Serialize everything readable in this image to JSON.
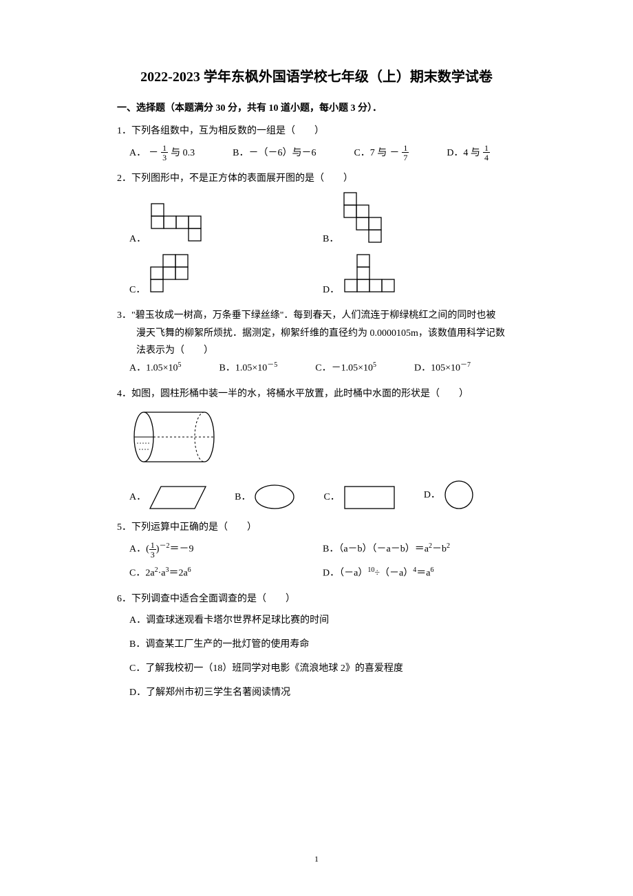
{
  "title": "2022-2023 学年东枫外国语学校七年级（上）期末数学试卷",
  "section1": {
    "header": "一、选择题（本题满分 30 分，共有 10 道小题，每小题 3 分）．",
    "q1": {
      "text": "1．下列各组数中，互为相反数的一组是（　　）",
      "A_pre": "A．",
      "A_mid": "与 0.3",
      "B": "B．－（－6）与－6",
      "C_pre": "C．7 与",
      "D_pre": "D．4 与"
    },
    "q2": {
      "text": "2．下列图形中，不是正方体的表面展开图的是（　　）",
      "A": "A．",
      "B": "B．",
      "C": "C．",
      "D": "D．"
    },
    "q3": {
      "line1": "3．\"碧玉妆成一树高，万条垂下绿丝绦\"．每到春天，人们流连于柳绿桃红之间的同时也被",
      "line2": "漫天飞舞的柳絮所烦扰．据测定，柳絮纤维的直径约为 0.0000105m，该数值用科学记数",
      "line3": "法表示为（　　）",
      "A": "A．1.05×10",
      "A_sup": "5",
      "B": "B．1.05×10",
      "B_sup": "－5",
      "C": "C．－1.05×10",
      "C_sup": "5",
      "D": "D．105×10",
      "D_sup": "－7"
    },
    "q4": {
      "text": "4．如图，圆柱形桶中装一半的水，将桶水平放置，此时桶中水面的形状是（　　）",
      "A": "A．",
      "B": "B．",
      "C": "C．",
      "D": "D．"
    },
    "q5": {
      "text": "5．下列运算中正确的是（　　）",
      "A_pre": "A．(",
      "A_post": ")",
      "A_sup": "－2",
      "A_eq": "＝－9",
      "B": "B．（a－b）（－a－b）＝a",
      "B_sup1": "2",
      "B_mid": "－b",
      "B_sup2": "2",
      "C": "C．2a",
      "C_sup1": "2",
      "C_mid": "·a",
      "C_sup2": "3",
      "C_eq": "＝2a",
      "C_sup3": "6",
      "D": "D．（－a）",
      "D_sup1": "10",
      "D_mid": "÷（－a）",
      "D_sup2": "4",
      "D_eq": "＝a",
      "D_sup3": "6"
    },
    "q6": {
      "text": "6．下列调查中适合全面调查的是（　　）",
      "A": "A．调查球迷观看卡塔尔世界杯足球比赛的时间",
      "B": "B．调查某工厂生产的一批灯管的使用寿命",
      "C": "C．了解我校初一（18）班同学对电影《流浪地球 2》的喜爱程度",
      "D": "D．了解郑州市初三学生名著阅读情况"
    }
  },
  "pageNum": "1",
  "colors": {
    "text": "#000000",
    "bg": "#ffffff"
  },
  "fonts": {
    "title": 20,
    "body": 14
  },
  "fractions": {
    "neg_one_third": {
      "num": "1",
      "den": "3",
      "sign": "－"
    },
    "neg_one_seventh": {
      "num": "1",
      "den": "7",
      "sign": "－"
    },
    "one_quarter": {
      "num": "1",
      "den": "4"
    },
    "one_third": {
      "num": "1",
      "den": "3"
    }
  },
  "nets": {
    "cell": 18,
    "stroke": "#000000",
    "A": [
      [
        0,
        0
      ],
      [
        0,
        1
      ],
      [
        1,
        1
      ],
      [
        2,
        1
      ],
      [
        3,
        1
      ],
      [
        3,
        2
      ]
    ],
    "B": [
      [
        0,
        0
      ],
      [
        0,
        1
      ],
      [
        1,
        1
      ],
      [
        1,
        2
      ],
      [
        2,
        2
      ],
      [
        2,
        3
      ]
    ],
    "C": [
      [
        1,
        0
      ],
      [
        2,
        0
      ],
      [
        0,
        1
      ],
      [
        1,
        1
      ],
      [
        2,
        1
      ],
      [
        0,
        2
      ]
    ],
    "D": [
      [
        1,
        0
      ],
      [
        1,
        1
      ],
      [
        0,
        2
      ],
      [
        1,
        2
      ],
      [
        2,
        2
      ],
      [
        3,
        2
      ]
    ]
  },
  "cylinder": {
    "w": 130,
    "h": 88
  },
  "shapes_q4": {
    "A": "parallelogram",
    "B": "ellipse",
    "C": "rectangle",
    "D": "circle"
  }
}
